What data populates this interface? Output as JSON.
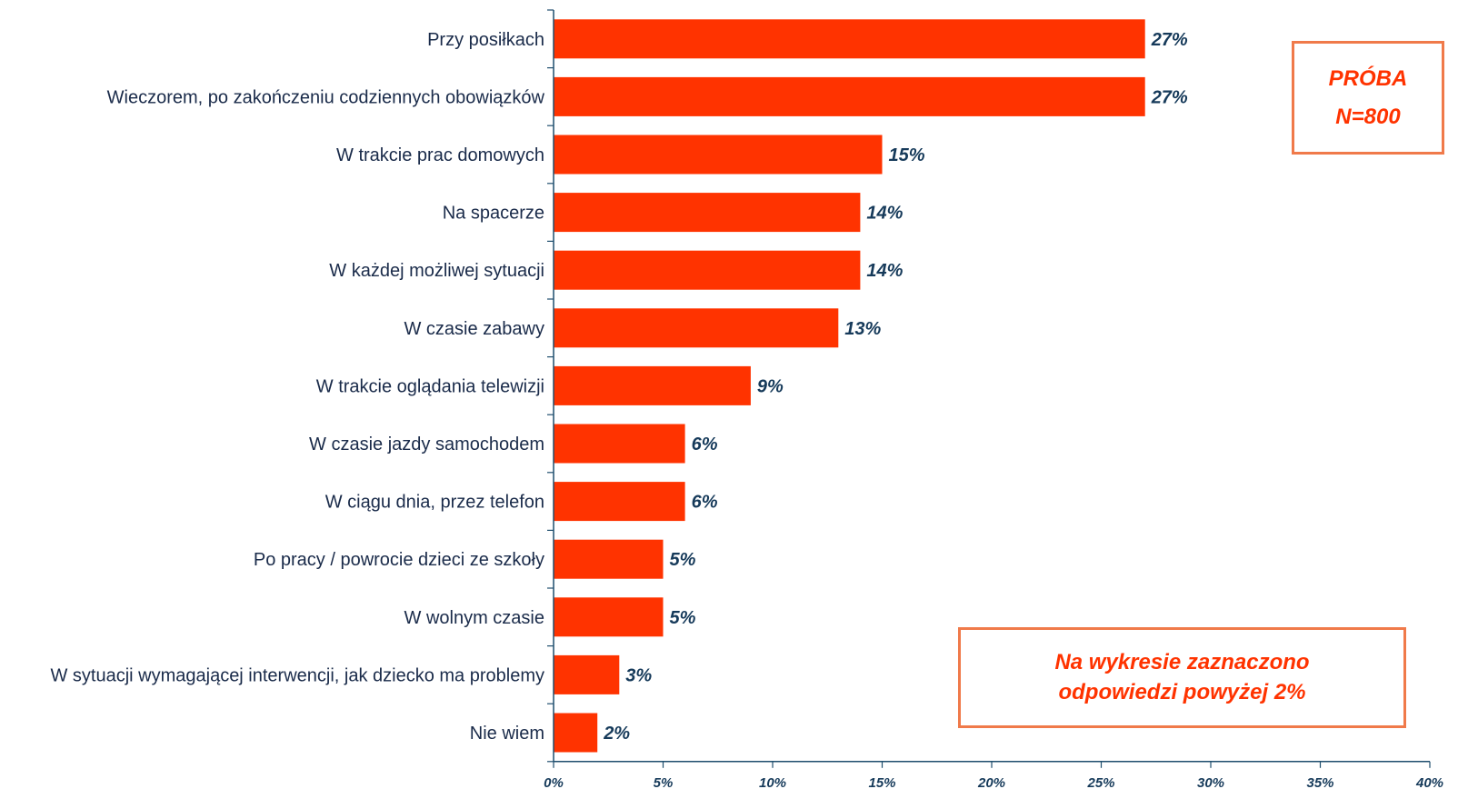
{
  "chart_data": {
    "type": "bar",
    "orientation": "horizontal",
    "categories": [
      "Przy posiłkach",
      "Wieczorem, po zakończeniu codziennych obowiązków",
      "W trakcie prac domowych",
      "Na spacerze",
      "W każdej możliwej sytuacji",
      "W czasie zabawy",
      "W trakcie oglądania telewizji",
      "W czasie jazdy samochodem",
      "W ciągu dnia, przez telefon",
      "Po pracy / powrocie dzieci ze szkoły",
      "W wolnym czasie",
      "W sytuacji wymagającej interwencji, jak dziecko ma problemy",
      "Nie wiem"
    ],
    "values": [
      27,
      27,
      15,
      14,
      14,
      13,
      9,
      6,
      6,
      5,
      5,
      3,
      2
    ],
    "value_labels": [
      "27%",
      "27%",
      "15%",
      "14%",
      "14%",
      "13%",
      "9%",
      "6%",
      "6%",
      "5%",
      "5%",
      "3%",
      "2%"
    ],
    "xlim": [
      0,
      40
    ],
    "x_ticks": [
      0,
      5,
      10,
      15,
      20,
      25,
      30,
      35,
      40
    ],
    "x_tick_labels": [
      "0%",
      "5%",
      "10%",
      "15%",
      "20%",
      "25%",
      "30%",
      "35%",
      "40%"
    ],
    "grid": false,
    "bar_color": "#ff3300",
    "axis_color": "#1f4e6e"
  },
  "sample_box": {
    "line1": "PRÓBA",
    "line2": "N=800"
  },
  "note_box": {
    "line1": "Na wykresie zaznaczono",
    "line2": "odpowiedzi powyżej 2%"
  }
}
